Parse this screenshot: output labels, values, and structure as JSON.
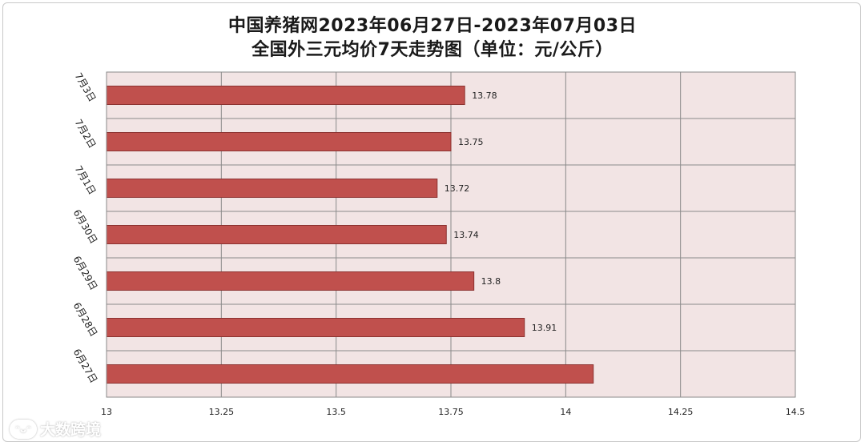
{
  "chart_data": {
    "type": "bar",
    "orientation": "horizontal",
    "title": "中国养猪网2023年06月27日-2023年07月03日",
    "subtitle": "全国外三元均价7天走势图（单位：元/公斤）",
    "categories": [
      "6月27日",
      "6月28日",
      "6月29日",
      "6月30日",
      "7月1日",
      "7月2日",
      "7月3日"
    ],
    "values": [
      14.06,
      13.91,
      13.8,
      13.74,
      13.72,
      13.75,
      13.78
    ],
    "data_labels": [
      "",
      "13.91",
      "13.8",
      "13.74",
      "13.72",
      "13.75",
      "13.78"
    ],
    "xlim": [
      13,
      14.5
    ],
    "x_ticks": [
      "13",
      "13.25",
      "13.5",
      "13.75",
      "14",
      "14.25",
      "14.5"
    ],
    "grid": true,
    "colors": {
      "bar": "#c0504d",
      "bar_stroke": "#8c3230",
      "plot_bg": "#f2e4e4",
      "grid": "#8a8a8a"
    }
  },
  "watermark": "大数跨境"
}
